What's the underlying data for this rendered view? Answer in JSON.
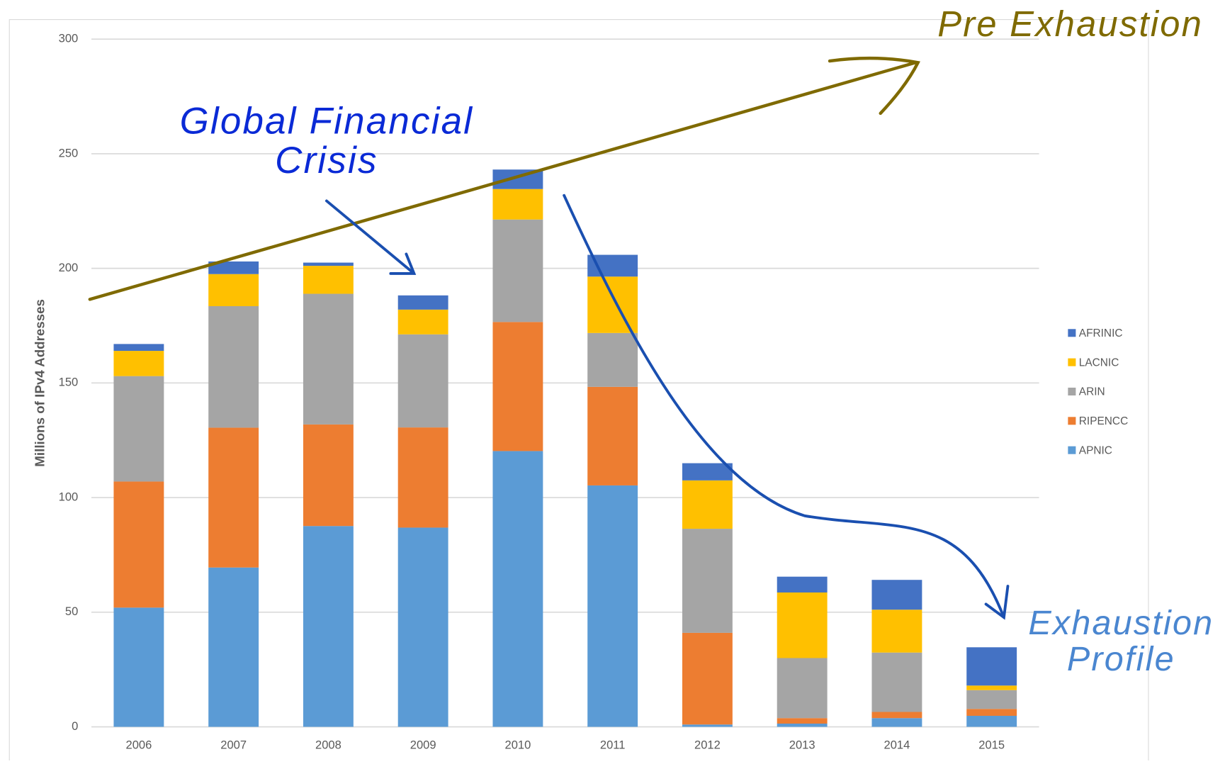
{
  "chart_data": {
    "type": "stacked_bar",
    "ylabel": "Millions of IPv4 Addresses",
    "categories": [
      "2006",
      "2007",
      "2008",
      "2009",
      "2010",
      "2011",
      "2012",
      "2013",
      "2014",
      "2015"
    ],
    "series": [
      {
        "name": "APNIC",
        "color": "#5b9bd5",
        "values": [
          52,
          69.5,
          87.6,
          86.9,
          120.3,
          105.3,
          1,
          1.4,
          3.8,
          4.8
        ]
      },
      {
        "name": "RIPENCC",
        "color": "#ed7d31",
        "values": [
          55,
          61,
          44.3,
          43.7,
          56.3,
          43,
          40,
          2.4,
          2.7,
          3
        ]
      },
      {
        "name": "ARIN",
        "color": "#a5a5a5",
        "values": [
          46,
          53,
          57,
          40.6,
          44.7,
          23.5,
          45.4,
          26.2,
          25.9,
          8.2
        ]
      },
      {
        "name": "LACNIC",
        "color": "#ffc000",
        "values": [
          11,
          14,
          12.2,
          10.8,
          13.3,
          24.6,
          21.1,
          28.6,
          18.7,
          2
        ]
      },
      {
        "name": "AFRINIC",
        "color": "#4472c4",
        "values": [
          3,
          5.5,
          1.4,
          6.2,
          8.5,
          9.5,
          7.5,
          6.9,
          13,
          16.7
        ]
      }
    ],
    "ylim": [
      0,
      300
    ],
    "yticks": [
      0,
      50,
      100,
      150,
      200,
      250,
      300
    ],
    "grid": true,
    "legend": "right",
    "annotations": [
      {
        "lines": [
          "Pre Exhaustion"
        ],
        "color": "#7f6a00"
      },
      {
        "lines": [
          "Global Financial",
          "Crisis"
        ],
        "color": "#0a2ad6"
      },
      {
        "lines": [
          "Exhaustion",
          "Profile"
        ],
        "color": "#4a86d0"
      }
    ]
  }
}
